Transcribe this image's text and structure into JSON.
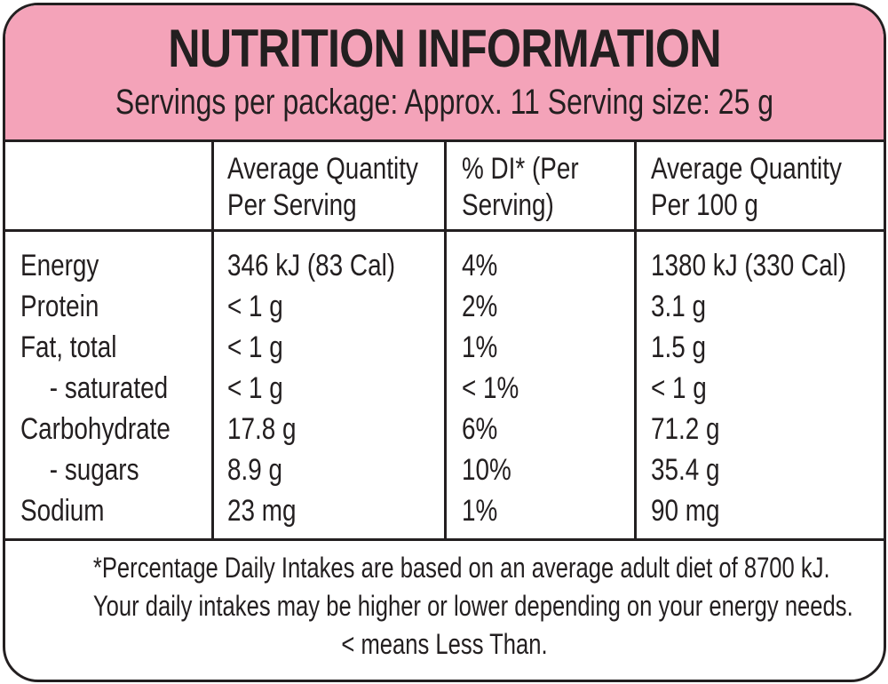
{
  "panel": {
    "title": "NUTRITION INFORMATION",
    "subtitle": "Servings per package: Approx. 11  Serving size: 25 g"
  },
  "columns": [
    {
      "line1": "Average Quantity",
      "line2": "Per Serving"
    },
    {
      "line1": "% DI* (Per",
      "line2": "Serving)"
    },
    {
      "line1": "Average Quantity",
      "line2": "Per 100 g"
    }
  ],
  "rows": [
    {
      "name": "Energy",
      "per_serving": "346 kJ (83 Cal)",
      "di": "4%",
      "per_100g": "1380 kJ (330 Cal)"
    },
    {
      "name": "Protein",
      "per_serving": "< 1 g",
      "di": "2%",
      "per_100g": "3.1 g"
    },
    {
      "name": "Fat, total",
      "per_serving": "< 1 g",
      "di": "1%",
      "per_100g": "1.5 g"
    },
    {
      "name": "- saturated",
      "per_serving": "< 1 g",
      "di": "< 1%",
      "per_100g": "< 1 g"
    },
    {
      "name": "Carbohydrate",
      "per_serving": "17.8 g",
      "di": "6%",
      "per_100g": "71.2 g"
    },
    {
      "name": "- sugars",
      "per_serving": "8.9 g",
      "di": "10%",
      "per_100g": "35.4 g"
    },
    {
      "name": "Sodium",
      "per_serving": "23 mg",
      "di": "1%",
      "per_100g": "90 mg"
    }
  ],
  "footer": {
    "line1": "*Percentage Daily Intakes are based on an average adult diet of 8700 kJ.",
    "line2": "Your daily intakes may be higher or lower depending on your energy needs.",
    "line3": "< means Less Than."
  },
  "colors": {
    "header_pink": "#f4a3b9",
    "ink": "#231f20"
  }
}
